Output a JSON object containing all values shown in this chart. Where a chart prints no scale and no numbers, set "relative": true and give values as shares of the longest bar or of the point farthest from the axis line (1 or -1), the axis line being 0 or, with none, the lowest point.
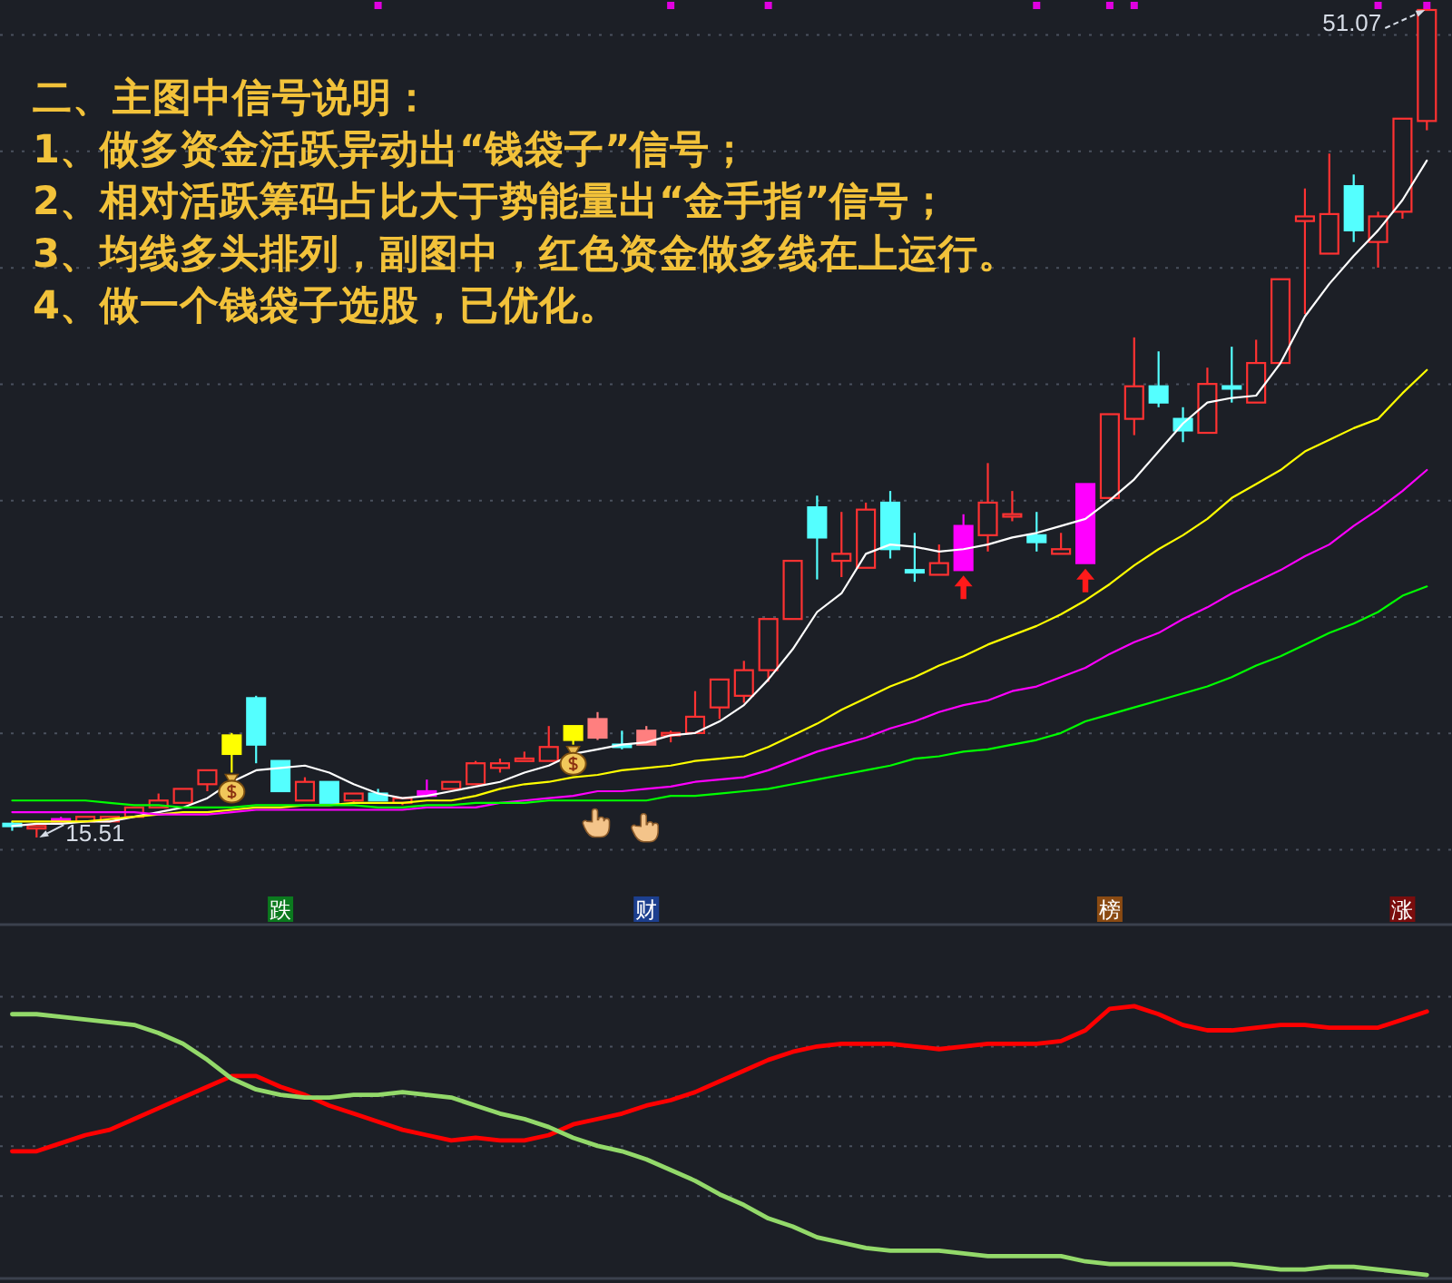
{
  "chart_data": [
    {
      "type": "candlestick",
      "title": "二、主图中信号说明：",
      "annotations": [
        "1、做多资金活跃异动出“钱袋子”信号；",
        "2、相对活跃筹码占比大于势能量出“金手指”信号；",
        "3、均线多头排列，副图中，红色资金做多线在上运行。",
        "4、做一个钱袋子选股，已优化。",
        "51.07",
        "15.51"
      ],
      "categories": [
        null,
        null,
        null,
        null,
        null,
        null,
        null,
        null,
        null,
        null,
        null,
        "跌",
        null,
        null,
        null,
        null,
        null,
        null,
        null,
        null,
        null,
        null,
        null,
        null,
        null,
        null,
        "财",
        null,
        null,
        null,
        null,
        null,
        null,
        null,
        null,
        null,
        null,
        null,
        null,
        null,
        null,
        null,
        null,
        null,
        null,
        "榜",
        null,
        null,
        null,
        null,
        null,
        null,
        null,
        null,
        null,
        null,
        null,
        "涨",
        null
      ],
      "ohlc": [
        [
          16.1,
          16.2,
          15.8,
          16.0
        ],
        [
          15.9,
          16.0,
          15.51,
          16.0
        ],
        [
          16.3,
          16.4,
          16.1,
          16.2
        ],
        [
          16.2,
          16.4,
          16.2,
          16.4
        ],
        [
          16.2,
          16.4,
          16.2,
          16.4
        ],
        [
          16.4,
          16.8,
          16.4,
          16.8
        ],
        [
          16.8,
          17.4,
          16.8,
          17.1
        ],
        [
          17.0,
          17.6,
          17.0,
          17.6
        ],
        [
          17.8,
          18.4,
          17.5,
          18.4
        ],
        [
          19.9,
          20.0,
          18.3,
          19.1
        ],
        [
          21.5,
          21.6,
          18.7,
          19.5
        ],
        [
          18.8,
          18.8,
          17.5,
          17.5
        ],
        [
          17.1,
          18.1,
          17.1,
          17.9
        ],
        [
          17.9,
          17.9,
          17.0,
          17.0
        ],
        [
          17.1,
          17.4,
          17.0,
          17.4
        ],
        [
          17.4,
          17.6,
          17.1,
          17.1
        ],
        [
          17.0,
          17.2,
          16.9,
          17.2
        ],
        [
          17.5,
          18.0,
          17.3,
          17.3
        ],
        [
          17.6,
          17.9,
          17.6,
          17.9
        ],
        [
          17.8,
          18.8,
          17.8,
          18.7
        ],
        [
          18.5,
          18.9,
          18.3,
          18.7
        ],
        [
          18.8,
          19.2,
          18.8,
          18.9
        ],
        [
          18.8,
          20.3,
          18.8,
          19.4
        ],
        [
          20.3,
          20.3,
          19.5,
          19.7
        ],
        [
          20.6,
          20.9,
          19.7,
          19.8
        ],
        [
          19.5,
          20.1,
          19.3,
          19.4
        ],
        [
          20.1,
          20.3,
          19.5,
          19.5
        ],
        [
          19.9,
          20.1,
          19.6,
          20.0
        ],
        [
          20.0,
          21.8,
          20.0,
          20.7
        ],
        [
          21.1,
          22.3,
          20.6,
          22.3
        ],
        [
          21.6,
          23.1,
          21.3,
          22.7
        ],
        [
          22.7,
          24.9,
          22.2,
          24.9
        ],
        [
          24.9,
          27.4,
          24.9,
          27.4
        ],
        [
          29.7,
          30.2,
          26.6,
          28.4
        ],
        [
          27.4,
          29.5,
          26.7,
          27.7
        ],
        [
          27.1,
          29.9,
          27.1,
          29.6
        ],
        [
          29.9,
          30.4,
          27.5,
          27.9
        ],
        [
          27.0,
          28.6,
          26.5,
          26.9
        ],
        [
          26.8,
          28.1,
          26.8,
          27.3
        ],
        [
          28.9,
          29.4,
          27.0,
          27.0
        ],
        [
          28.5,
          31.6,
          27.8,
          29.9
        ],
        [
          29.3,
          30.4,
          29.1,
          29.4
        ],
        [
          28.5,
          29.5,
          27.8,
          28.2
        ],
        [
          27.7,
          28.6,
          27.7,
          27.9
        ],
        [
          30.7,
          30.7,
          27.3,
          27.3
        ],
        [
          30.1,
          33.7,
          30.1,
          33.7
        ],
        [
          33.5,
          37.0,
          32.8,
          34.9
        ],
        [
          34.9,
          36.4,
          34.0,
          34.2
        ],
        [
          33.5,
          34.0,
          32.5,
          33.0
        ],
        [
          32.9,
          35.7,
          32.9,
          35.0
        ],
        [
          34.9,
          36.6,
          34.2,
          34.8
        ],
        [
          34.2,
          36.9,
          34.2,
          35.9
        ],
        [
          35.9,
          39.5,
          35.9,
          39.5
        ],
        [
          42.0,
          43.4,
          38.0,
          42.2
        ],
        [
          40.6,
          44.9,
          40.6,
          42.3
        ],
        [
          43.5,
          44.0,
          41.1,
          41.6
        ],
        [
          41.1,
          42.4,
          40.0,
          42.2
        ],
        [
          42.4,
          46.4,
          42.1,
          46.4
        ],
        [
          46.3,
          51.07,
          45.9,
          51.07
        ]
      ],
      "colors": [
        "#54ffff",
        "#ff3232",
        "#ff00ff",
        "#ff3232",
        "#ff3232",
        "#ff3232",
        "#ff3232",
        "#ff3232",
        "#ff3232",
        "#ffff00",
        "#54ffff",
        "#54ffff",
        "#ff3232",
        "#54ffff",
        "#ff3232",
        "#54ffff",
        "#ff3232",
        "#ff00ff",
        "#ff3232",
        "#ff3232",
        "#ff3232",
        "#ff3232",
        "#ff3232",
        "#ffff00",
        "#ff7f7f",
        "#54ffff",
        "#ff7f7f",
        "#ff3232",
        "#ff3232",
        "#ff3232",
        "#ff3232",
        "#ff3232",
        "#ff3232",
        "#54ffff",
        "#ff3232",
        "#ff3232",
        "#54ffff",
        "#54ffff",
        "#ff3232",
        "#ff00ff",
        "#ff3232",
        "#ff3232",
        "#54ffff",
        "#ff3232",
        "#ff00ff",
        "#ff3232",
        "#ff3232",
        "#54ffff",
        "#54ffff",
        "#ff3232",
        "#54ffff",
        "#ff3232",
        "#ff3232",
        "#ff3232",
        "#ff3232",
        "#54ffff",
        "#ff3232",
        "#ff3232",
        "#ff3232"
      ],
      "series": [
        {
          "type": "line",
          "color": "#ffffff",
          "values": [
            16.0,
            16.1,
            16.1,
            16.2,
            16.2,
            16.4,
            16.6,
            16.8,
            17.2,
            17.9,
            18.4,
            18.5,
            18.6,
            18.3,
            17.8,
            17.4,
            17.2,
            17.3,
            17.5,
            17.7,
            17.9,
            18.3,
            18.6,
            19.1,
            19.3,
            19.5,
            19.6,
            19.9,
            20.0,
            20.5,
            21.2,
            22.3,
            23.6,
            25.2,
            26.0,
            27.7,
            28.1,
            28.0,
            27.8,
            27.9,
            28.1,
            28.4,
            28.6,
            28.9,
            29.2,
            30.0,
            30.9,
            32.1,
            33.3,
            34.2,
            34.4,
            34.5,
            35.9,
            37.9,
            39.3,
            40.5,
            41.6,
            42.9,
            44.6
          ]
        },
        {
          "type": "line",
          "color": "#ffff00",
          "values": [
            16.2,
            16.2,
            16.2,
            16.2,
            16.3,
            16.4,
            16.5,
            16.6,
            16.6,
            16.7,
            16.8,
            16.8,
            16.9,
            16.9,
            17.0,
            17.0,
            17.0,
            17.1,
            17.1,
            17.3,
            17.6,
            17.8,
            17.9,
            18.1,
            18.2,
            18.4,
            18.5,
            18.6,
            18.8,
            18.9,
            19.0,
            19.4,
            19.9,
            20.4,
            21.0,
            21.5,
            22.0,
            22.4,
            22.9,
            23.3,
            23.8,
            24.2,
            24.6,
            25.1,
            25.7,
            26.4,
            27.2,
            27.9,
            28.5,
            29.2,
            30.1,
            30.7,
            31.3,
            32.1,
            32.6,
            33.1,
            33.5,
            34.6,
            35.6
          ]
        },
        {
          "type": "line",
          "color": "#ff00ff",
          "values": [
            16.6,
            16.6,
            16.6,
            16.6,
            16.6,
            16.6,
            16.5,
            16.5,
            16.5,
            16.6,
            16.7,
            16.7,
            16.7,
            16.7,
            16.7,
            16.7,
            16.7,
            16.8,
            16.8,
            16.8,
            17.0,
            17.1,
            17.2,
            17.3,
            17.5,
            17.5,
            17.6,
            17.7,
            17.9,
            18.0,
            18.1,
            18.4,
            18.8,
            19.2,
            19.5,
            19.8,
            20.2,
            20.5,
            20.9,
            21.2,
            21.4,
            21.8,
            22.0,
            22.4,
            22.8,
            23.4,
            23.9,
            24.3,
            24.9,
            25.4,
            26.0,
            26.5,
            27.0,
            27.6,
            28.1,
            28.9,
            29.6,
            30.4,
            31.3
          ]
        },
        {
          "type": "line",
          "color": "#00ff00",
          "values": [
            17.1,
            17.1,
            17.1,
            17.1,
            17.0,
            16.9,
            16.9,
            16.8,
            16.8,
            16.8,
            16.9,
            16.9,
            16.9,
            16.9,
            16.9,
            16.8,
            16.8,
            16.9,
            16.9,
            17.0,
            17.0,
            17.0,
            17.1,
            17.1,
            17.1,
            17.1,
            17.1,
            17.3,
            17.3,
            17.4,
            17.5,
            17.6,
            17.8,
            18.0,
            18.2,
            18.4,
            18.6,
            18.9,
            19.0,
            19.2,
            19.3,
            19.5,
            19.7,
            20.0,
            20.5,
            20.8,
            21.1,
            21.4,
            21.7,
            22.0,
            22.4,
            22.9,
            23.3,
            23.8,
            24.3,
            24.7,
            25.2,
            25.9,
            26.3
          ]
        }
      ],
      "grid": "y"
    },
    {
      "type": "line",
      "relative": true,
      "categories": [
        null,
        null,
        null,
        null,
        null,
        null,
        null,
        null,
        null,
        null,
        null,
        null,
        null,
        null,
        null,
        null,
        null,
        null,
        null,
        null,
        null,
        null,
        null,
        null,
        null,
        null,
        null,
        null,
        null,
        null,
        null,
        null,
        null,
        null,
        null,
        null,
        null,
        null,
        null,
        null,
        null,
        null,
        null,
        null,
        null,
        null,
        null,
        null,
        null,
        null,
        null,
        null,
        null,
        null,
        null,
        null,
        null,
        null,
        null
      ],
      "series": [
        {
          "color": "#ff0000",
          "values": [
            0.46,
            0.46,
            0.49,
            0.52,
            0.54,
            0.58,
            0.62,
            0.66,
            0.7,
            0.74,
            0.74,
            0.7,
            0.67,
            0.63,
            0.6,
            0.57,
            0.54,
            0.52,
            0.5,
            0.51,
            0.5,
            0.5,
            0.52,
            0.56,
            0.58,
            0.6,
            0.63,
            0.65,
            0.68,
            0.72,
            0.76,
            0.8,
            0.83,
            0.85,
            0.86,
            0.86,
            0.86,
            0.85,
            0.84,
            0.85,
            0.86,
            0.86,
            0.86,
            0.87,
            0.91,
            0.99,
            1,
            0.97,
            0.93,
            0.91,
            0.91,
            0.92,
            0.93,
            0.93,
            0.92,
            0.92,
            0.92,
            0.95,
            0.98
          ]
        },
        {
          "color": "#93d96a",
          "values": [
            0.97,
            0.97,
            0.96,
            0.95,
            0.94,
            0.93,
            0.9,
            0.86,
            0.8,
            0.73,
            0.69,
            0.67,
            0.66,
            0.66,
            0.67,
            0.67,
            0.68,
            0.67,
            0.66,
            0.63,
            0.6,
            0.58,
            0.55,
            0.51,
            0.48,
            0.46,
            0.43,
            0.39,
            0.35,
            0.3,
            0.26,
            0.21,
            0.18,
            0.14,
            0.12,
            0.1,
            0.09,
            0.09,
            0.09,
            0.08,
            0.07,
            0.07,
            0.07,
            0.07,
            0.05,
            0.04,
            0.04,
            0.04,
            0.04,
            0.04,
            0.04,
            0.03,
            0.02,
            0.02,
            0.03,
            0.03,
            0.02,
            0.01,
            0
          ]
        }
      ],
      "grid": "y"
    }
  ]
}
